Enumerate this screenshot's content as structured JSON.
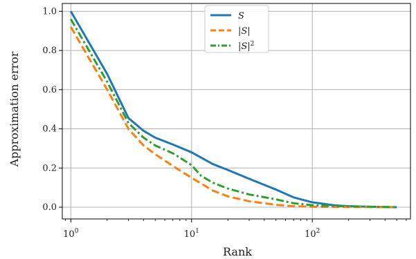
{
  "chart_data": {
    "type": "line",
    "xlabel": "Rank",
    "ylabel": "Approximation error",
    "xscale": "log",
    "xlim": [
      0.85,
      650
    ],
    "ylim": [
      -0.06,
      1.04
    ],
    "grid": true,
    "legend_position": "top-center",
    "x_ticks": [
      {
        "value": 1,
        "base": "10",
        "exp": "0"
      },
      {
        "value": 10,
        "base": "10",
        "exp": "1"
      },
      {
        "value": 100,
        "base": "10",
        "exp": "2"
      }
    ],
    "y_ticks": [
      {
        "value": 0.0,
        "label": "0.0"
      },
      {
        "value": 0.2,
        "label": "0.2"
      },
      {
        "value": 0.4,
        "label": "0.4"
      },
      {
        "value": 0.6,
        "label": "0.6"
      },
      {
        "value": 0.8,
        "label": "0.8"
      },
      {
        "value": 1.0,
        "label": "1.0"
      }
    ],
    "series": [
      {
        "name": "S",
        "color": "#1f77b4",
        "dash": "solid",
        "points": [
          [
            1,
            1.0
          ],
          [
            2,
            0.68
          ],
          [
            3,
            0.455
          ],
          [
            4,
            0.39
          ],
          [
            5,
            0.355
          ],
          [
            7,
            0.32
          ],
          [
            10,
            0.28
          ],
          [
            15,
            0.22
          ],
          [
            20,
            0.19
          ],
          [
            30,
            0.145
          ],
          [
            50,
            0.09
          ],
          [
            70,
            0.05
          ],
          [
            100,
            0.025
          ],
          [
            150,
            0.01
          ],
          [
            200,
            0.005
          ],
          [
            300,
            0.002
          ],
          [
            500,
            0.0
          ]
        ]
      },
      {
        "name": "|S|",
        "color": "#ff7f0e",
        "dash": "dashed",
        "points": [
          [
            1,
            0.92
          ],
          [
            2,
            0.6
          ],
          [
            3,
            0.4
          ],
          [
            4,
            0.315
          ],
          [
            5,
            0.27
          ],
          [
            7,
            0.21
          ],
          [
            10,
            0.15
          ],
          [
            15,
            0.085
          ],
          [
            20,
            0.055
          ],
          [
            30,
            0.03
          ],
          [
            50,
            0.012
          ],
          [
            70,
            0.005
          ],
          [
            100,
            0.002
          ],
          [
            200,
            0.001
          ],
          [
            500,
            0.0
          ]
        ]
      },
      {
        "name": "|S|",
        "name_superscript": "2",
        "color": "#2ca02c",
        "dash": "dashdot",
        "points": [
          [
            1,
            0.96
          ],
          [
            2,
            0.64
          ],
          [
            3,
            0.43
          ],
          [
            4,
            0.355
          ],
          [
            5,
            0.315
          ],
          [
            7,
            0.275
          ],
          [
            10,
            0.215
          ],
          [
            12,
            0.16
          ],
          [
            15,
            0.125
          ],
          [
            20,
            0.095
          ],
          [
            30,
            0.065
          ],
          [
            50,
            0.04
          ],
          [
            70,
            0.02
          ],
          [
            100,
            0.01
          ],
          [
            200,
            0.004
          ],
          [
            500,
            0.0
          ]
        ]
      }
    ]
  }
}
